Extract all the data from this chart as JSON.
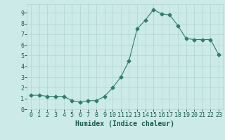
{
  "x": [
    0,
    1,
    2,
    3,
    4,
    5,
    6,
    7,
    8,
    9,
    10,
    11,
    12,
    13,
    14,
    15,
    16,
    17,
    18,
    19,
    20,
    21,
    22,
    23
  ],
  "y": [
    1.3,
    1.3,
    1.2,
    1.2,
    1.2,
    0.8,
    0.65,
    0.8,
    0.8,
    1.2,
    2.0,
    3.0,
    4.5,
    7.5,
    8.3,
    9.3,
    8.9,
    8.8,
    7.8,
    6.6,
    6.5,
    6.5,
    6.5,
    5.1
  ],
  "line_color": "#2e7d6e",
  "marker": "D",
  "marker_size": 2.5,
  "bg_color": "#cceae8",
  "grid_color": "#b0d4d2",
  "xlabel": "Humidex (Indice chaleur)",
  "xlabel_color": "#1a5c50",
  "xlabel_fontsize": 7,
  "tick_color": "#1a5c50",
  "tick_fontsize": 6,
  "xlim": [
    -0.5,
    23.5
  ],
  "ylim": [
    0,
    9.8
  ],
  "yticks": [
    0,
    1,
    2,
    3,
    4,
    5,
    6,
    7,
    8,
    9
  ],
  "xticks": [
    0,
    1,
    2,
    3,
    4,
    5,
    6,
    7,
    8,
    9,
    10,
    11,
    12,
    13,
    14,
    15,
    16,
    17,
    18,
    19,
    20,
    21,
    22,
    23
  ]
}
